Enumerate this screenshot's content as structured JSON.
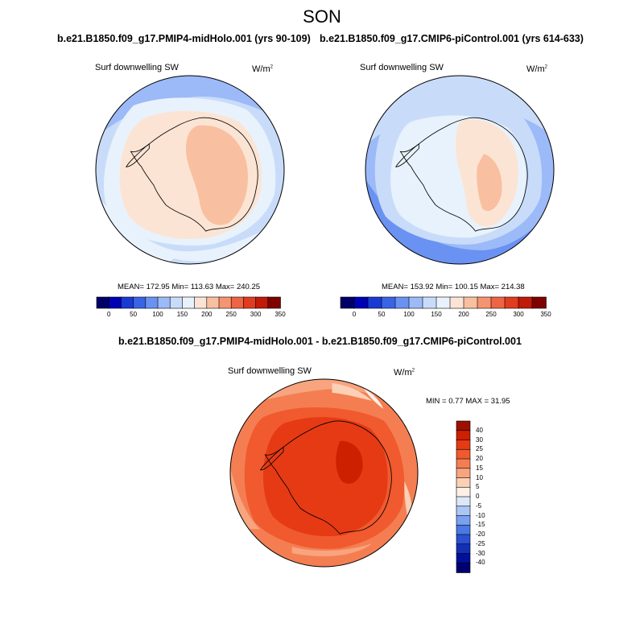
{
  "title": "SON",
  "panel_left": {
    "case": "b.e21.B1850.f09_g17.PMIP4-midHolo.001 (yrs 90-109)",
    "variable": "Surf downwelling SW",
    "units_base": "W/m",
    "units_exp": "2",
    "stats": "MEAN= 172.95  Min= 113.63  Max= 240.25"
  },
  "panel_right": {
    "case": "b.e21.B1850.f09_g17.CMIP6-piControl.001 (yrs 614-633)",
    "variable": "Surf downwelling SW",
    "units_base": "W/m",
    "units_exp": "2",
    "stats": "MEAN= 153.92  Min= 100.15  Max= 214.38"
  },
  "panel_diff": {
    "case": "b.e21.B1850.f09_g17.PMIP4-midHolo.001 - b.e21.B1850.f09_g17.CMIP6-piControl.001",
    "variable": "Surf downwelling SW",
    "units_base": "W/m",
    "units_exp": "2",
    "stats": "MIN =   0.77 MAX =  31.95"
  },
  "colorbar_abs": {
    "tick_labels": [
      "0",
      "50",
      "100",
      "150",
      "200",
      "250",
      "300",
      "350"
    ],
    "colors": [
      "#000066",
      "#0000b4",
      "#1a3ad4",
      "#3a64e6",
      "#6a92f2",
      "#9cbaf8",
      "#c8dcfa",
      "#e8f2fc",
      "#fce4d4",
      "#f8c0a0",
      "#f49470",
      "#ee6444",
      "#e03c20",
      "#c01a08",
      "#800000"
    ]
  },
  "colorbar_diff": {
    "tick_labels": [
      "40",
      "30",
      "25",
      "20",
      "15",
      "10",
      "5",
      "0",
      "-5",
      "-10",
      "-15",
      "-20",
      "-25",
      "-30",
      "-40"
    ],
    "colors": [
      "#9c1000",
      "#cc2000",
      "#e63a14",
      "#f05a2e",
      "#f47e52",
      "#f8a47e",
      "#fcd0b4",
      "#fdf0e6",
      "#dce8fa",
      "#aac6f6",
      "#7aa0f0",
      "#4a78e4",
      "#2a50d4",
      "#1230b4",
      "#00109a",
      "#000070"
    ]
  },
  "chart_data": [
    {
      "type": "map",
      "title": "b.e21.B1850.f09_g17.PMIP4-midHolo.001 (yrs 90-109)",
      "variable": "Surf downwelling SW",
      "units": "W/m2",
      "projection": "south polar stereographic",
      "mean": 172.95,
      "min": 113.63,
      "max": 240.25,
      "colorbar_range": [
        0,
        350
      ]
    },
    {
      "type": "map",
      "title": "b.e21.B1850.f09_g17.CMIP6-piControl.001 (yrs 614-633)",
      "variable": "Surf downwelling SW",
      "units": "W/m2",
      "projection": "south polar stereographic",
      "mean": 153.92,
      "min": 100.15,
      "max": 214.38,
      "colorbar_range": [
        0,
        350
      ]
    },
    {
      "type": "map",
      "title": "b.e21.B1850.f09_g17.PMIP4-midHolo.001 - b.e21.B1850.f09_g17.CMIP6-piControl.001",
      "variable": "Surf downwelling SW",
      "units": "W/m2",
      "projection": "south polar stereographic",
      "min": 0.77,
      "max": 31.95,
      "colorbar_range": [
        -40,
        40
      ]
    }
  ]
}
